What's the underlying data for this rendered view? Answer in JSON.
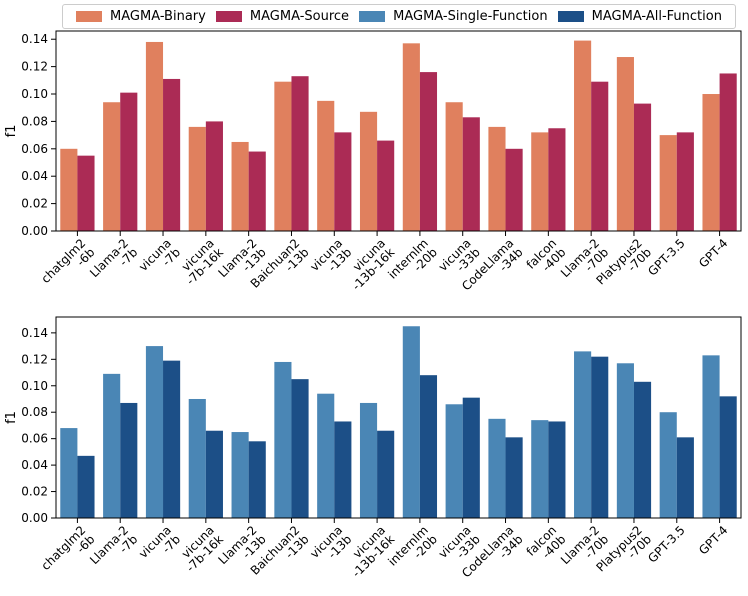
{
  "legend": [
    {
      "label": "MAGMA-Binary",
      "color": "#e0805e"
    },
    {
      "label": "MAGMA-Source",
      "color": "#ab2b55"
    },
    {
      "label": "MAGMA-Single-Function",
      "color": "#4a86b5"
    },
    {
      "label": "MAGMA-All-Function",
      "color": "#1c4f87"
    }
  ],
  "chart_data": [
    {
      "type": "bar",
      "ylabel": "f1",
      "xlabel": "",
      "ylim": [
        0,
        0.146
      ],
      "yticks": [
        "0.00",
        "0.02",
        "0.04",
        "0.06",
        "0.08",
        "0.10",
        "0.12",
        "0.14"
      ],
      "categories": [
        [
          "chatglm2",
          "-6b"
        ],
        [
          "Llama-2",
          "-7b"
        ],
        [
          "vicuna",
          "-7b"
        ],
        [
          "vicuna",
          "-7b-16k"
        ],
        [
          "Llama-2",
          "-13b"
        ],
        [
          "Baichuan2",
          "-13b"
        ],
        [
          "vicuna",
          "-13b"
        ],
        [
          "vicuna",
          "-13b-16k"
        ],
        [
          "internlm",
          "-20b"
        ],
        [
          "vicuna",
          "-33b"
        ],
        [
          "CodeLlama",
          "-34b"
        ],
        [
          "falcon",
          "-40b"
        ],
        [
          "Llama-2",
          "-70b"
        ],
        [
          "Platypus2",
          "-70b"
        ],
        [
          "GPT-3.5"
        ],
        [
          "GPT-4"
        ]
      ],
      "series": [
        {
          "name": "MAGMA-Binary",
          "color": "#e0805e",
          "values": [
            0.06,
            0.094,
            0.138,
            0.076,
            0.065,
            0.109,
            0.095,
            0.087,
            0.137,
            0.094,
            0.076,
            0.072,
            0.139,
            0.127,
            0.07,
            0.1
          ]
        },
        {
          "name": "MAGMA-Source",
          "color": "#ab2b55",
          "values": [
            0.055,
            0.101,
            0.111,
            0.08,
            0.058,
            0.113,
            0.072,
            0.066,
            0.116,
            0.083,
            0.06,
            0.075,
            0.109,
            0.093,
            0.072,
            0.115
          ]
        }
      ]
    },
    {
      "type": "bar",
      "ylabel": "f1",
      "xlabel": "",
      "ylim": [
        0,
        0.152
      ],
      "yticks": [
        "0.00",
        "0.02",
        "0.04",
        "0.06",
        "0.08",
        "0.10",
        "0.12",
        "0.14"
      ],
      "categories": [
        [
          "chatglm2",
          "-6b"
        ],
        [
          "Llama-2",
          "-7b"
        ],
        [
          "vicuna",
          "-7b"
        ],
        [
          "vicuna",
          "-7b-16k"
        ],
        [
          "Llama-2",
          "-13b"
        ],
        [
          "Baichuan2",
          "-13b"
        ],
        [
          "vicuna",
          "-13b"
        ],
        [
          "vicuna",
          "-13b-16k"
        ],
        [
          "internlm",
          "-20b"
        ],
        [
          "vicuna",
          "-33b"
        ],
        [
          "CodeLlama",
          "-34b"
        ],
        [
          "falcon",
          "-40b"
        ],
        [
          "Llama-2",
          "-70b"
        ],
        [
          "Platypus2",
          "-70b"
        ],
        [
          "GPT-3.5"
        ],
        [
          "GPT-4"
        ]
      ],
      "series": [
        {
          "name": "MAGMA-Single-Function",
          "color": "#4a86b5",
          "values": [
            0.068,
            0.109,
            0.13,
            0.09,
            0.065,
            0.118,
            0.094,
            0.087,
            0.145,
            0.086,
            0.075,
            0.074,
            0.126,
            0.117,
            0.08,
            0.123
          ]
        },
        {
          "name": "MAGMA-All-Function",
          "color": "#1c4f87",
          "values": [
            0.047,
            0.087,
            0.119,
            0.066,
            0.058,
            0.105,
            0.073,
            0.066,
            0.108,
            0.091,
            0.061,
            0.073,
            0.122,
            0.103,
            0.061,
            0.092
          ]
        }
      ]
    }
  ]
}
